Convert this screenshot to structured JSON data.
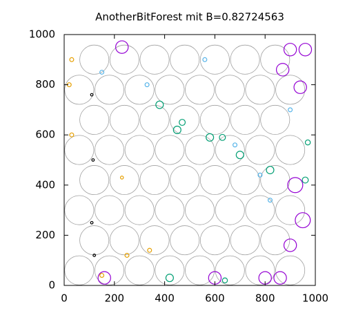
{
  "chart_data": {
    "type": "scatter",
    "title": "AnotherBitForest mit B=0.82724563",
    "xlim": [
      0,
      1000
    ],
    "ylim": [
      0,
      1000
    ],
    "xticks": [
      0,
      200,
      400,
      600,
      800,
      1000
    ],
    "yticks": [
      0,
      200,
      400,
      600,
      800,
      1000
    ],
    "series": [
      {
        "color": "#a0a0a0",
        "x": [
          60,
          180,
          300,
          420,
          540,
          660,
          780,
          900,
          120,
          240,
          360,
          480,
          600,
          720,
          840,
          60,
          180,
          300,
          420,
          540,
          660,
          780,
          900,
          120,
          240,
          360,
          480,
          600,
          720,
          840,
          60,
          180,
          300,
          420,
          540,
          660,
          780,
          900,
          120,
          240,
          360,
          480,
          600,
          720,
          840,
          60,
          180,
          300,
          420,
          540,
          660,
          780,
          900,
          120,
          240,
          360,
          480,
          600,
          720,
          840
        ],
        "values": [
          60,
          60,
          60,
          60,
          60,
          60,
          60,
          60,
          180,
          180,
          180,
          180,
          180,
          180,
          180,
          300,
          300,
          300,
          300,
          300,
          300,
          300,
          300,
          420,
          420,
          420,
          420,
          420,
          420,
          420,
          540,
          540,
          540,
          540,
          540,
          540,
          540,
          540,
          660,
          660,
          660,
          660,
          660,
          660,
          660,
          780,
          780,
          780,
          780,
          780,
          780,
          780,
          780,
          900,
          900,
          900,
          900,
          900,
          900,
          900
        ],
        "sizes": [
          58,
          58,
          58,
          58,
          58,
          58,
          58,
          58,
          58,
          58,
          58,
          58,
          58,
          58,
          58,
          58,
          58,
          58,
          58,
          58,
          58,
          58,
          58,
          58,
          58,
          58,
          58,
          58,
          58,
          58,
          58,
          58,
          58,
          58,
          58,
          58,
          58,
          58,
          58,
          58,
          58,
          58,
          58,
          58,
          58,
          58,
          58,
          58,
          58,
          58,
          58,
          58,
          58,
          58,
          58,
          58,
          58,
          58,
          58,
          58
        ]
      },
      {
        "color": "#9400d3",
        "x": [
          900,
          960,
          870,
          940,
          920,
          950,
          900,
          160,
          600,
          800,
          860,
          230
        ],
        "values": [
          940,
          940,
          860,
          790,
          400,
          260,
          160,
          30,
          30,
          30,
          30,
          950
        ],
        "sizes": [
          25,
          25,
          25,
          25,
          30,
          30,
          25,
          25,
          25,
          25,
          25,
          25
        ]
      },
      {
        "color": "#009e73",
        "x": [
          450,
          580,
          630,
          700,
          820,
          380,
          470,
          420,
          640,
          970,
          960
        ],
        "values": [
          620,
          590,
          590,
          520,
          460,
          720,
          650,
          30,
          20,
          570,
          420
        ],
        "sizes": [
          15,
          15,
          12,
          15,
          15,
          15,
          12,
          15,
          10,
          10,
          12
        ]
      },
      {
        "color": "#e69f00",
        "x": [
          30,
          20,
          30,
          250,
          340,
          230,
          150
        ],
        "values": [
          900,
          800,
          600,
          120,
          140,
          430,
          40
        ],
        "sizes": [
          8,
          8,
          8,
          8,
          8,
          6,
          8
        ]
      },
      {
        "color": "#56b4e9",
        "x": [
          150,
          330,
          680,
          780,
          820,
          900,
          560
        ],
        "values": [
          850,
          800,
          560,
          440,
          340,
          700,
          900
        ],
        "sizes": [
          8,
          8,
          8,
          8,
          8,
          8,
          8
        ]
      },
      {
        "color": "#000000",
        "x": [
          110,
          115,
          110,
          120
        ],
        "values": [
          760,
          500,
          250,
          120
        ],
        "sizes": [
          5,
          5,
          5,
          5
        ]
      }
    ]
  }
}
